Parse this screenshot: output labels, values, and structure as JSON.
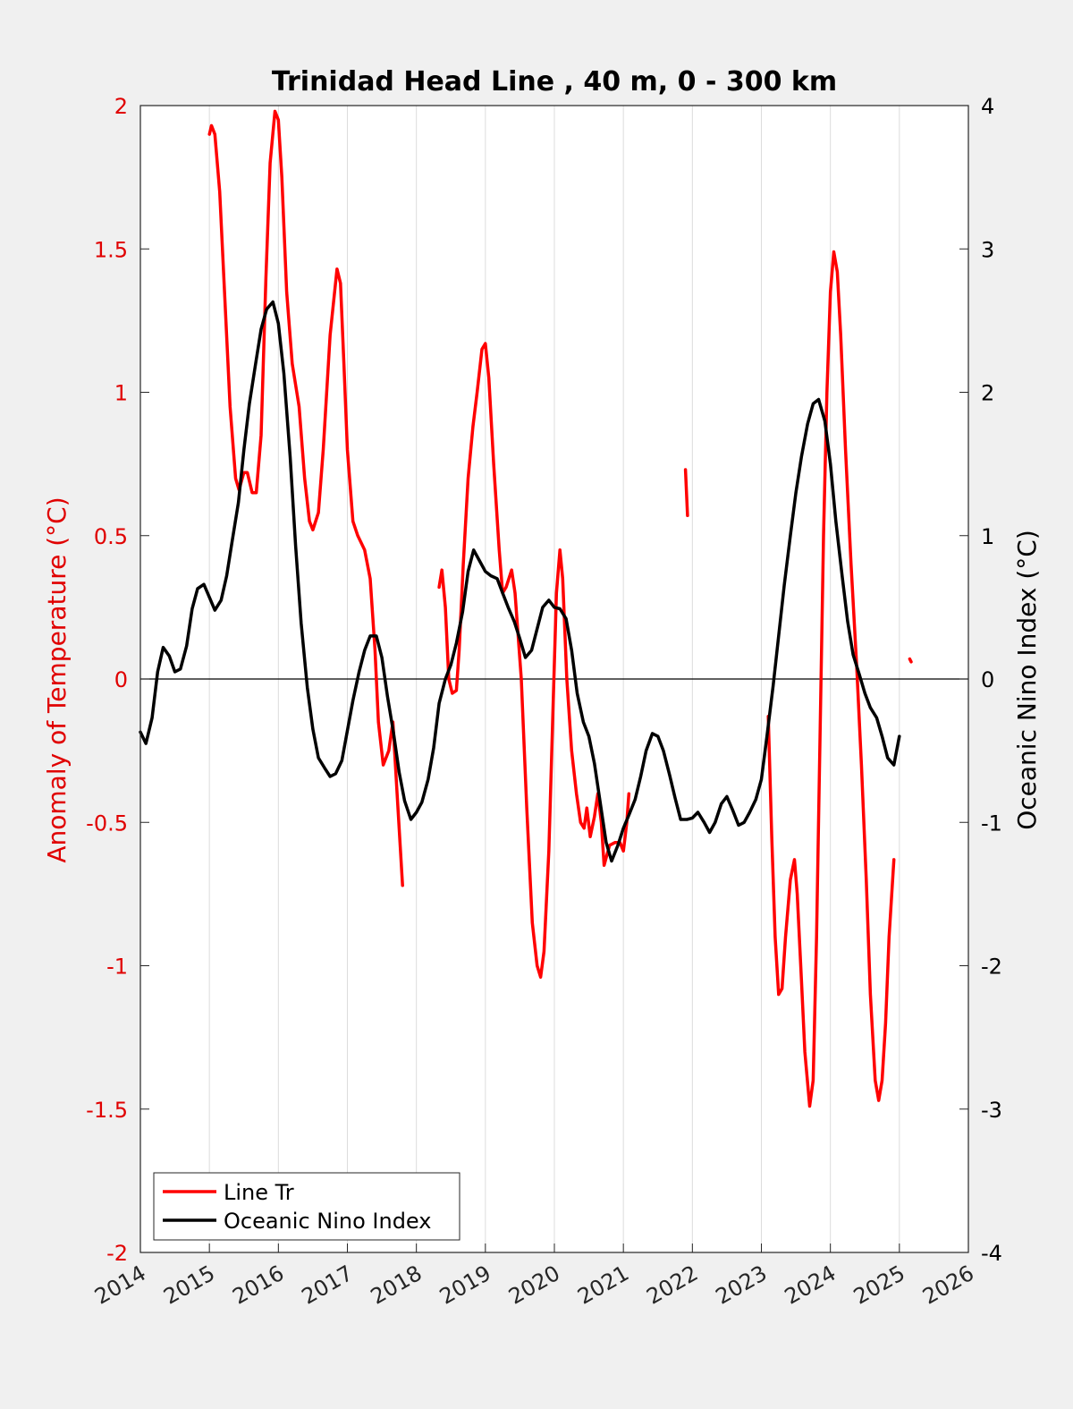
{
  "chart_data": {
    "type": "line",
    "title": "Trinidad Head Line , 40 m, 0 - 300 km",
    "xlabel": "",
    "ylabel_left": "Anomaly of Temperature (°C)",
    "ylabel_right": "Oceanic Nino Index (°C)",
    "xlim": [
      2014,
      2026
    ],
    "ylim_left": [
      -2,
      2
    ],
    "ylim_right": [
      -4,
      4
    ],
    "x_ticks": [
      2014,
      2015,
      2016,
      2017,
      2018,
      2019,
      2020,
      2021,
      2022,
      2023,
      2024,
      2025,
      2026
    ],
    "x_tick_labels": [
      "2014",
      "2015",
      "2016",
      "2017",
      "2018",
      "2019",
      "2020",
      "2021",
      "2022",
      "2023",
      "2024",
      "2025",
      "2026"
    ],
    "y_left_ticks": [
      -2,
      -1.5,
      -1,
      -0.5,
      0,
      0.5,
      1,
      1.5,
      2
    ],
    "y_left_tick_labels": [
      "-2",
      "-1.5",
      "-1",
      "-0.5",
      "0",
      "0.5",
      "1",
      "1.5",
      "2"
    ],
    "y_right_ticks": [
      -4,
      -3,
      -2,
      -1,
      0,
      1,
      2,
      3,
      4
    ],
    "y_right_tick_labels": [
      "-4",
      "-3",
      "-2",
      "-1",
      "0",
      "1",
      "2",
      "3",
      "4"
    ],
    "grid": "vertical",
    "zero_line": true,
    "legend_placement": "bottom-left",
    "colors": {
      "left_axis": "#e00000",
      "right_axis": "#000000",
      "line_tr": "#ff0000",
      "oni": "#000000"
    },
    "series": [
      {
        "name": "Line Tr",
        "axis": "left",
        "color": "#ff0000",
        "segments": [
          [
            [
              2015.0,
              1.9
            ],
            [
              2015.03,
              1.93
            ],
            [
              2015.08,
              1.9
            ],
            [
              2015.15,
              1.7
            ],
            [
              2015.22,
              1.35
            ],
            [
              2015.3,
              0.95
            ],
            [
              2015.38,
              0.7
            ],
            [
              2015.43,
              0.66
            ],
            [
              2015.5,
              0.72
            ],
            [
              2015.55,
              0.72
            ],
            [
              2015.62,
              0.65
            ],
            [
              2015.68,
              0.65
            ],
            [
              2015.75,
              0.85
            ],
            [
              2015.82,
              1.4
            ],
            [
              2015.88,
              1.8
            ],
            [
              2015.95,
              1.98
            ],
            [
              2016.0,
              1.95
            ],
            [
              2016.05,
              1.75
            ],
            [
              2016.12,
              1.35
            ],
            [
              2016.2,
              1.1
            ],
            [
              2016.3,
              0.95
            ],
            [
              2016.38,
              0.7
            ],
            [
              2016.45,
              0.55
            ],
            [
              2016.5,
              0.52
            ],
            [
              2016.58,
              0.58
            ],
            [
              2016.65,
              0.8
            ],
            [
              2016.75,
              1.2
            ],
            [
              2016.85,
              1.43
            ],
            [
              2016.9,
              1.38
            ],
            [
              2016.95,
              1.1
            ],
            [
              2017.0,
              0.8
            ],
            [
              2017.08,
              0.55
            ],
            [
              2017.15,
              0.5
            ],
            [
              2017.25,
              0.45
            ],
            [
              2017.33,
              0.35
            ],
            [
              2017.4,
              0.1
            ],
            [
              2017.45,
              -0.15
            ],
            [
              2017.52,
              -0.3
            ],
            [
              2017.6,
              -0.25
            ],
            [
              2017.66,
              -0.15
            ],
            [
              2017.72,
              -0.4
            ],
            [
              2017.8,
              -0.72
            ]
          ],
          [
            [
              2018.33,
              0.32
            ],
            [
              2018.37,
              0.38
            ],
            [
              2018.42,
              0.25
            ],
            [
              2018.47,
              0.0
            ],
            [
              2018.52,
              -0.05
            ],
            [
              2018.58,
              -0.04
            ],
            [
              2018.62,
              0.1
            ],
            [
              2018.68,
              0.4
            ],
            [
              2018.75,
              0.7
            ],
            [
              2018.82,
              0.88
            ],
            [
              2018.88,
              1.0
            ],
            [
              2018.95,
              1.15
            ],
            [
              2019.0,
              1.17
            ],
            [
              2019.05,
              1.05
            ],
            [
              2019.12,
              0.75
            ],
            [
              2019.2,
              0.45
            ],
            [
              2019.25,
              0.3
            ],
            [
              2019.3,
              0.32
            ],
            [
              2019.38,
              0.38
            ],
            [
              2019.43,
              0.3
            ],
            [
              2019.52,
              0.0
            ],
            [
              2019.6,
              -0.45
            ],
            [
              2019.68,
              -0.85
            ],
            [
              2019.75,
              -1.0
            ],
            [
              2019.8,
              -1.04
            ],
            [
              2019.85,
              -0.95
            ],
            [
              2019.92,
              -0.6
            ],
            [
              2019.98,
              -0.1
            ],
            [
              2020.03,
              0.3
            ],
            [
              2020.08,
              0.45
            ],
            [
              2020.12,
              0.35
            ],
            [
              2020.18,
              0.0
            ],
            [
              2020.25,
              -0.25
            ],
            [
              2020.32,
              -0.4
            ],
            [
              2020.38,
              -0.5
            ],
            [
              2020.43,
              -0.52
            ],
            [
              2020.47,
              -0.45
            ],
            [
              2020.52,
              -0.55
            ],
            [
              2020.58,
              -0.48
            ],
            [
              2020.63,
              -0.4
            ],
            [
              2020.68,
              -0.5
            ],
            [
              2020.72,
              -0.65
            ],
            [
              2020.8,
              -0.58
            ],
            [
              2020.88,
              -0.57
            ],
            [
              2020.95,
              -0.57
            ],
            [
              2021.0,
              -0.6
            ],
            [
              2021.05,
              -0.5
            ],
            [
              2021.08,
              -0.4
            ]
          ],
          [
            [
              2021.9,
              0.73
            ],
            [
              2021.93,
              0.57
            ]
          ],
          [
            [
              2023.1,
              -0.13
            ],
            [
              2023.15,
              -0.55
            ],
            [
              2023.2,
              -0.9
            ],
            [
              2023.25,
              -1.1
            ],
            [
              2023.3,
              -1.08
            ],
            [
              2023.35,
              -0.9
            ],
            [
              2023.42,
              -0.7
            ],
            [
              2023.48,
              -0.63
            ],
            [
              2023.52,
              -0.75
            ],
            [
              2023.58,
              -1.05
            ],
            [
              2023.63,
              -1.3
            ],
            [
              2023.7,
              -1.49
            ],
            [
              2023.75,
              -1.4
            ],
            [
              2023.8,
              -0.9
            ],
            [
              2023.85,
              -0.2
            ],
            [
              2023.9,
              0.5
            ],
            [
              2023.95,
              1.0
            ],
            [
              2024.0,
              1.35
            ],
            [
              2024.05,
              1.49
            ],
            [
              2024.1,
              1.42
            ],
            [
              2024.15,
              1.2
            ],
            [
              2024.22,
              0.8
            ],
            [
              2024.3,
              0.4
            ],
            [
              2024.38,
              0.05
            ],
            [
              2024.45,
              -0.3
            ],
            [
              2024.52,
              -0.7
            ],
            [
              2024.58,
              -1.1
            ],
            [
              2024.65,
              -1.4
            ],
            [
              2024.7,
              -1.47
            ],
            [
              2024.75,
              -1.4
            ],
            [
              2024.8,
              -1.2
            ],
            [
              2024.85,
              -0.9
            ],
            [
              2024.92,
              -0.63
            ]
          ],
          [
            [
              2025.15,
              0.07
            ],
            [
              2025.17,
              0.06
            ]
          ]
        ]
      },
      {
        "name": "Oceanic Nino Index",
        "axis": "right",
        "color": "#000000",
        "points": [
          [
            2014.0,
            -0.37
          ],
          [
            2014.08,
            -0.45
          ],
          [
            2014.17,
            -0.27
          ],
          [
            2014.25,
            0.05
          ],
          [
            2014.33,
            0.22
          ],
          [
            2014.42,
            0.16
          ],
          [
            2014.5,
            0.05
          ],
          [
            2014.58,
            0.07
          ],
          [
            2014.67,
            0.23
          ],
          [
            2014.75,
            0.49
          ],
          [
            2014.83,
            0.63
          ],
          [
            2014.92,
            0.66
          ],
          [
            2015.0,
            0.57
          ],
          [
            2015.08,
            0.48
          ],
          [
            2015.17,
            0.55
          ],
          [
            2015.25,
            0.72
          ],
          [
            2015.33,
            0.96
          ],
          [
            2015.42,
            1.23
          ],
          [
            2015.5,
            1.6
          ],
          [
            2015.58,
            1.92
          ],
          [
            2015.67,
            2.2
          ],
          [
            2015.75,
            2.44
          ],
          [
            2015.83,
            2.58
          ],
          [
            2015.92,
            2.63
          ],
          [
            2016.0,
            2.48
          ],
          [
            2016.08,
            2.13
          ],
          [
            2016.17,
            1.55
          ],
          [
            2016.25,
            0.93
          ],
          [
            2016.33,
            0.39
          ],
          [
            2016.42,
            -0.06
          ],
          [
            2016.5,
            -0.35
          ],
          [
            2016.58,
            -0.55
          ],
          [
            2016.67,
            -0.62
          ],
          [
            2016.75,
            -0.68
          ],
          [
            2016.83,
            -0.66
          ],
          [
            2016.92,
            -0.57
          ],
          [
            2017.0,
            -0.36
          ],
          [
            2017.08,
            -0.15
          ],
          [
            2017.17,
            0.05
          ],
          [
            2017.25,
            0.2
          ],
          [
            2017.33,
            0.3
          ],
          [
            2017.42,
            0.3
          ],
          [
            2017.5,
            0.15
          ],
          [
            2017.58,
            -0.12
          ],
          [
            2017.67,
            -0.38
          ],
          [
            2017.75,
            -0.65
          ],
          [
            2017.83,
            -0.85
          ],
          [
            2017.92,
            -0.98
          ],
          [
            2018.0,
            -0.93
          ],
          [
            2018.08,
            -0.86
          ],
          [
            2018.17,
            -0.7
          ],
          [
            2018.25,
            -0.48
          ],
          [
            2018.33,
            -0.17
          ],
          [
            2018.42,
            0.0
          ],
          [
            2018.5,
            0.1
          ],
          [
            2018.58,
            0.25
          ],
          [
            2018.67,
            0.47
          ],
          [
            2018.75,
            0.75
          ],
          [
            2018.83,
            0.9
          ],
          [
            2018.92,
            0.82
          ],
          [
            2019.0,
            0.75
          ],
          [
            2019.08,
            0.72
          ],
          [
            2019.17,
            0.7
          ],
          [
            2019.25,
            0.6
          ],
          [
            2019.33,
            0.5
          ],
          [
            2019.42,
            0.4
          ],
          [
            2019.5,
            0.28
          ],
          [
            2019.58,
            0.15
          ],
          [
            2019.67,
            0.2
          ],
          [
            2019.75,
            0.35
          ],
          [
            2019.83,
            0.5
          ],
          [
            2019.92,
            0.55
          ],
          [
            2020.0,
            0.5
          ],
          [
            2020.08,
            0.49
          ],
          [
            2020.17,
            0.42
          ],
          [
            2020.25,
            0.2
          ],
          [
            2020.33,
            -0.1
          ],
          [
            2020.42,
            -0.3
          ],
          [
            2020.5,
            -0.4
          ],
          [
            2020.58,
            -0.59
          ],
          [
            2020.67,
            -0.88
          ],
          [
            2020.75,
            -1.14
          ],
          [
            2020.83,
            -1.27
          ],
          [
            2020.92,
            -1.16
          ],
          [
            2021.0,
            -1.04
          ],
          [
            2021.08,
            -0.95
          ],
          [
            2021.17,
            -0.84
          ],
          [
            2021.25,
            -0.68
          ],
          [
            2021.33,
            -0.5
          ],
          [
            2021.42,
            -0.38
          ],
          [
            2021.5,
            -0.4
          ],
          [
            2021.58,
            -0.5
          ],
          [
            2021.67,
            -0.67
          ],
          [
            2021.75,
            -0.83
          ],
          [
            2021.83,
            -0.98
          ],
          [
            2021.92,
            -0.98
          ],
          [
            2022.0,
            -0.97
          ],
          [
            2022.08,
            -0.93
          ],
          [
            2022.17,
            -1.0
          ],
          [
            2022.25,
            -1.07
          ],
          [
            2022.33,
            -1.0
          ],
          [
            2022.42,
            -0.87
          ],
          [
            2022.5,
            -0.82
          ],
          [
            2022.58,
            -0.91
          ],
          [
            2022.67,
            -1.02
          ],
          [
            2022.75,
            -1.0
          ],
          [
            2022.83,
            -0.93
          ],
          [
            2022.92,
            -0.84
          ],
          [
            2023.0,
            -0.7
          ],
          [
            2023.08,
            -0.4
          ],
          [
            2023.17,
            -0.05
          ],
          [
            2023.25,
            0.3
          ],
          [
            2023.33,
            0.65
          ],
          [
            2023.42,
            1.0
          ],
          [
            2023.5,
            1.3
          ],
          [
            2023.58,
            1.55
          ],
          [
            2023.67,
            1.78
          ],
          [
            2023.75,
            1.92
          ],
          [
            2023.83,
            1.95
          ],
          [
            2023.92,
            1.8
          ],
          [
            2024.0,
            1.5
          ],
          [
            2024.08,
            1.1
          ],
          [
            2024.17,
            0.72
          ],
          [
            2024.25,
            0.4
          ],
          [
            2024.33,
            0.17
          ],
          [
            2024.42,
            0.03
          ],
          [
            2024.5,
            -0.1
          ],
          [
            2024.58,
            -0.2
          ],
          [
            2024.67,
            -0.27
          ],
          [
            2024.75,
            -0.4
          ],
          [
            2024.83,
            -0.55
          ],
          [
            2024.92,
            -0.6
          ],
          [
            2025.0,
            -0.4
          ]
        ]
      }
    ]
  }
}
